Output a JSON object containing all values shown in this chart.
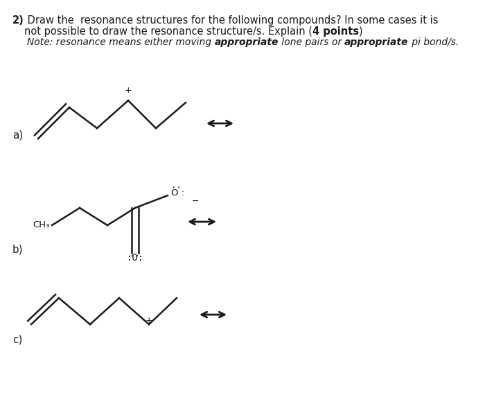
{
  "bg_color": "#ffffff",
  "line_color": "#1a1a1a",
  "title_num": "2)",
  "title_main": " Draw the  resonance structures for the following compounds? In some cases it is",
  "title_line2_pre": "not possible to draw the resonance structure/s. Explain (",
  "title_line2_bold": "4 points",
  "title_line2_post": ")",
  "title_line3_pre": "     Note: resonance means either moving ",
  "title_line3_bold1": "appropriate",
  "title_line3_mid": " lone pairs or ",
  "title_line3_bold2": "appropriate",
  "title_line3_post": " pi bond/s.",
  "label_a": "a)",
  "label_b": "b)",
  "label_c": "c)"
}
